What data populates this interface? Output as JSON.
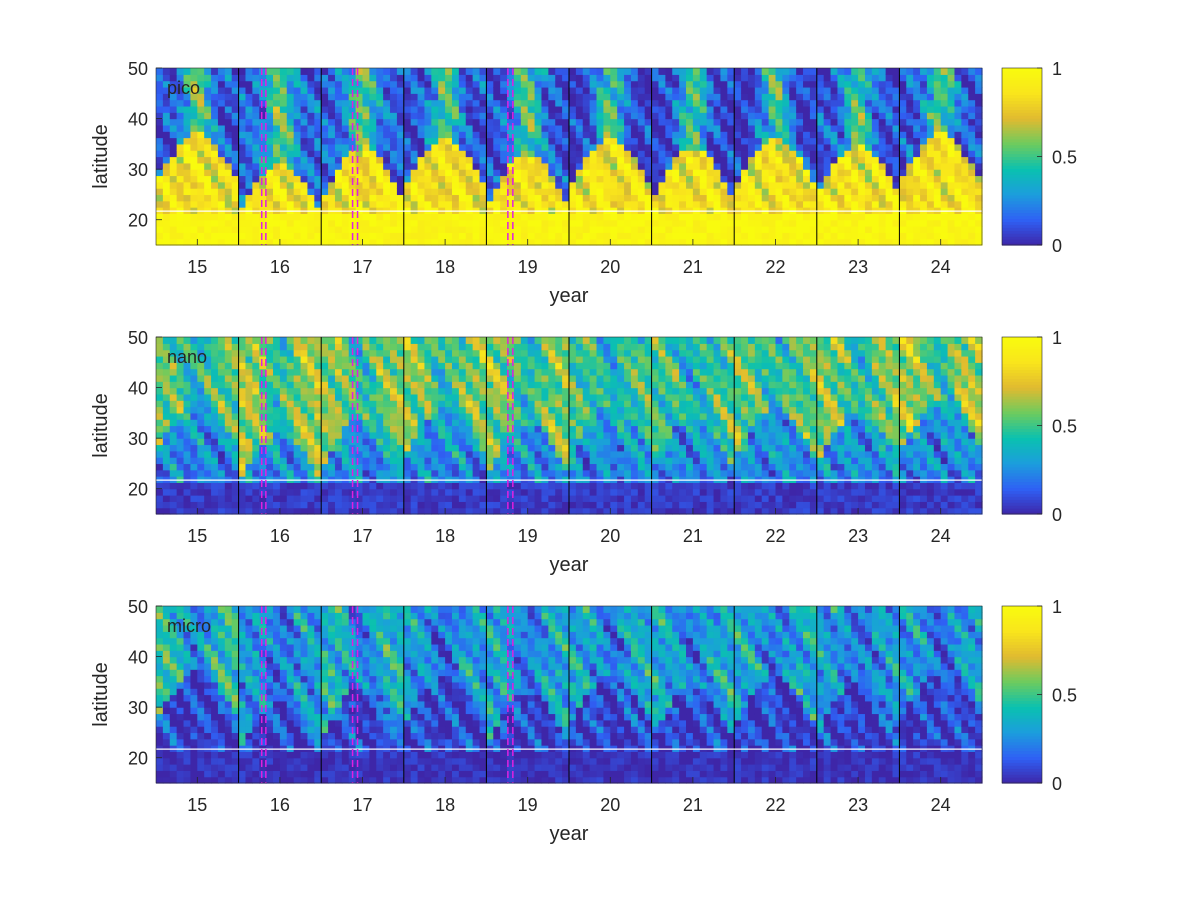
{
  "chart_data": [
    {
      "type": "heatmap",
      "panel_label": "pico",
      "xlabel": "year",
      "ylabel": "latitude",
      "xlim": [
        14.5,
        24.5
      ],
      "ylim": [
        15,
        50
      ],
      "x_ticks": [
        15,
        16,
        17,
        18,
        19,
        20,
        21,
        22,
        23,
        24
      ],
      "y_ticks": [
        20,
        30,
        40,
        50
      ],
      "colorbar": {
        "range": [
          0,
          1
        ],
        "ticks": [
          "0",
          "0.5",
          "1"
        ]
      },
      "colormap": [
        "#3e26a8",
        "#2f60f4",
        "#1c9ddd",
        "#0ac1b0",
        "#6ccb5f",
        "#e0ba30",
        "#f9e51c",
        "#f9fb0e"
      ],
      "year_separators": [
        15.5,
        16.5,
        17.5,
        18.5,
        19.5,
        20.5,
        21.5,
        22.5,
        23.5
      ],
      "reference_latitude": 21.7,
      "dashed_marker_years": [
        15.78,
        15.83,
        16.88,
        16.94,
        18.76,
        18.82
      ],
      "summer_minimum_latitude_by_year": [
        33,
        27,
        30,
        32,
        29,
        32,
        30,
        32,
        31,
        33
      ],
      "high_lat_value": [
        0.1,
        0.15,
        0.15,
        0.1,
        0.1,
        0.05,
        0.05,
        0.05,
        0.1,
        0.1
      ],
      "south_value": 0.97,
      "mid_value": 0.82
    },
    {
      "type": "heatmap",
      "panel_label": "nano",
      "xlabel": "year",
      "ylabel": "latitude",
      "xlim": [
        14.5,
        24.5
      ],
      "ylim": [
        15,
        50
      ],
      "x_ticks": [
        15,
        16,
        17,
        18,
        19,
        20,
        21,
        22,
        23,
        24
      ],
      "y_ticks": [
        20,
        30,
        40,
        50
      ],
      "colorbar": {
        "range": [
          0,
          1
        ],
        "ticks": [
          "0",
          "0.5",
          "1"
        ]
      },
      "colormap": [
        "#3e26a8",
        "#2f60f4",
        "#1c9ddd",
        "#0ac1b0",
        "#6ccb5f",
        "#e0ba30",
        "#f9e51c",
        "#f9fb0e"
      ],
      "year_separators": [
        15.5,
        16.5,
        17.5,
        18.5,
        19.5,
        20.5,
        21.5,
        22.5,
        23.5
      ],
      "reference_latitude": 21.7,
      "dashed_marker_years": [
        15.78,
        15.83,
        16.88,
        16.94,
        18.76,
        18.82
      ],
      "summer_minimum_latitude_by_year": [
        33,
        27,
        30,
        32,
        29,
        32,
        30,
        32,
        31,
        33
      ],
      "high_lat_value": [
        0.55,
        0.65,
        0.6,
        0.6,
        0.6,
        0.5,
        0.5,
        0.55,
        0.6,
        0.65
      ],
      "south_value": 0.05,
      "mid_value": 0.3
    },
    {
      "type": "heatmap",
      "panel_label": "micro",
      "xlabel": "year",
      "ylabel": "latitude",
      "xlim": [
        14.5,
        24.5
      ],
      "ylim": [
        15,
        50
      ],
      "x_ticks": [
        15,
        16,
        17,
        18,
        19,
        20,
        21,
        22,
        23,
        24
      ],
      "y_ticks": [
        20,
        30,
        40,
        50
      ],
      "colorbar": {
        "range": [
          0,
          1
        ],
        "ticks": [
          "0",
          "0.5",
          "1"
        ]
      },
      "colormap": [
        "#3e26a8",
        "#2f60f4",
        "#1c9ddd",
        "#0ac1b0",
        "#6ccb5f",
        "#e0ba30",
        "#f9e51c",
        "#f9fb0e"
      ],
      "year_separators": [
        15.5,
        16.5,
        17.5,
        18.5,
        19.5,
        20.5,
        21.5,
        22.5,
        23.5
      ],
      "reference_latitude": 21.7,
      "dashed_marker_years": [
        15.78,
        15.83,
        16.88,
        16.94,
        18.76,
        18.82
      ],
      "summer_minimum_latitude_by_year": [
        33,
        27,
        30,
        32,
        29,
        32,
        30,
        32,
        31,
        33
      ],
      "high_lat_value": [
        0.45,
        0.3,
        0.4,
        0.3,
        0.35,
        0.35,
        0.35,
        0.35,
        0.3,
        0.3
      ],
      "south_value": 0.03,
      "mid_value": 0.08
    }
  ],
  "colors": {
    "separator_line": "#000000",
    "reference_line": "#ffffff",
    "dashed_marker": "#e020e0",
    "axis_text": "#262626"
  }
}
